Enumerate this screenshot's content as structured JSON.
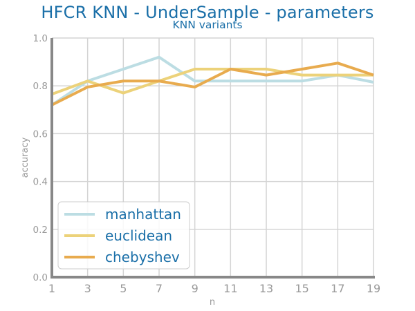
{
  "chart_data": {
    "type": "line",
    "title": "HFCR KNN - UnderSample - parameters",
    "subtitle": "KNN variants",
    "xlabel": "n",
    "ylabel": "accuracy",
    "x": [
      1,
      3,
      5,
      7,
      9,
      11,
      13,
      15,
      17,
      19
    ],
    "xlim": [
      1,
      19
    ],
    "ylim": [
      0.0,
      1.0
    ],
    "xticks": [
      "1",
      "3",
      "5",
      "7",
      "9",
      "11",
      "13",
      "15",
      "17",
      "19"
    ],
    "yticks": [
      "0.0",
      "0.2",
      "0.4",
      "0.6",
      "0.8",
      "1.0"
    ],
    "grid": true,
    "legend_position": "bottom-left",
    "series": [
      {
        "name": "manhattan",
        "color": "#bcdde3",
        "values": [
          0.72,
          0.82,
          0.87,
          0.92,
          0.82,
          0.82,
          0.82,
          0.82,
          0.845,
          0.815
        ]
      },
      {
        "name": "euclidean",
        "color": "#ecd27a",
        "values": [
          0.765,
          0.82,
          0.77,
          0.82,
          0.87,
          0.87,
          0.87,
          0.845,
          0.845,
          0.845
        ]
      },
      {
        "name": "chebyshev",
        "color": "#e8ab4e",
        "values": [
          0.72,
          0.795,
          0.82,
          0.82,
          0.795,
          0.87,
          0.845,
          0.87,
          0.895,
          0.845
        ]
      }
    ]
  }
}
